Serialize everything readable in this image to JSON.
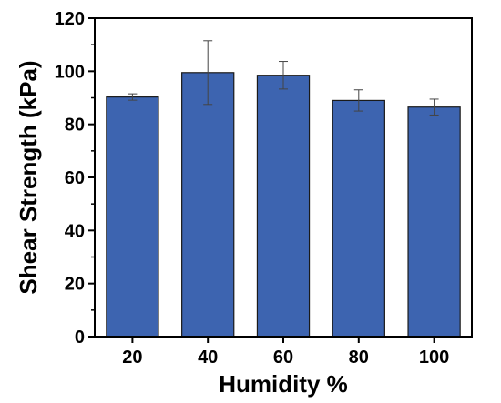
{
  "chart_data": {
    "type": "bar",
    "title": "",
    "xlabel": "Humidity %",
    "ylabel": "Shear Strength (kPa)",
    "categories": [
      "20",
      "40",
      "60",
      "80",
      "100"
    ],
    "values": [
      90.3,
      99.5,
      98.5,
      89.0,
      86.5
    ],
    "error": [
      1.2,
      12.0,
      5.2,
      4.0,
      3.0
    ],
    "ylim": [
      0,
      120
    ],
    "yticks": [
      0,
      20,
      40,
      60,
      80,
      100,
      120
    ],
    "grid": false,
    "bar_color": "#3d64b0",
    "bar_edge_color": "#1a1a1a",
    "error_bar_color": "#444444"
  }
}
